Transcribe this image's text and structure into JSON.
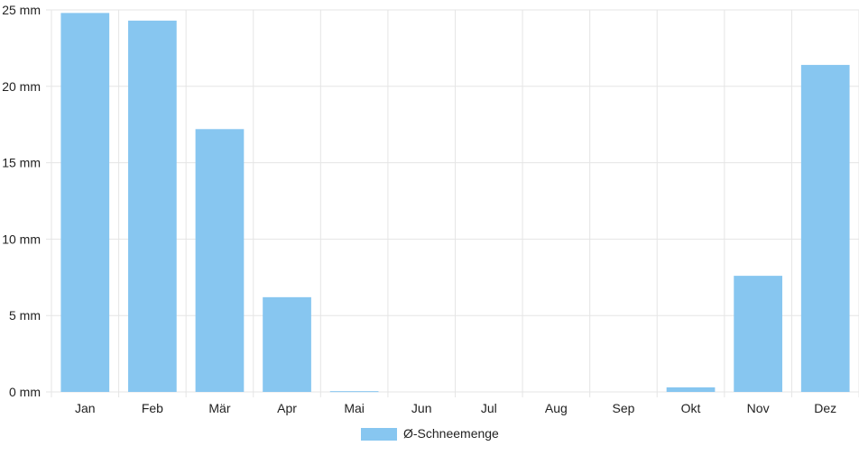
{
  "chart_data": {
    "type": "bar",
    "categories": [
      "Jan",
      "Feb",
      "Mär",
      "Apr",
      "Mai",
      "Jun",
      "Jul",
      "Aug",
      "Sep",
      "Okt",
      "Nov",
      "Dez"
    ],
    "series": [
      {
        "name": "Ø-Schneemenge",
        "color": "#87c6f0",
        "values": [
          24.8,
          24.3,
          17.2,
          6.2,
          0.05,
          0,
          0,
          0,
          0,
          0.3,
          7.6,
          21.4
        ]
      }
    ],
    "y_ticks": [
      "0 mm",
      "5 mm",
      "10 mm",
      "15 mm",
      "20 mm",
      "25 mm"
    ],
    "ylim": [
      0,
      25
    ],
    "y_unit": "mm",
    "grid": true,
    "legend_position": "bottom-center",
    "grid_color": "#e5e5e5"
  }
}
